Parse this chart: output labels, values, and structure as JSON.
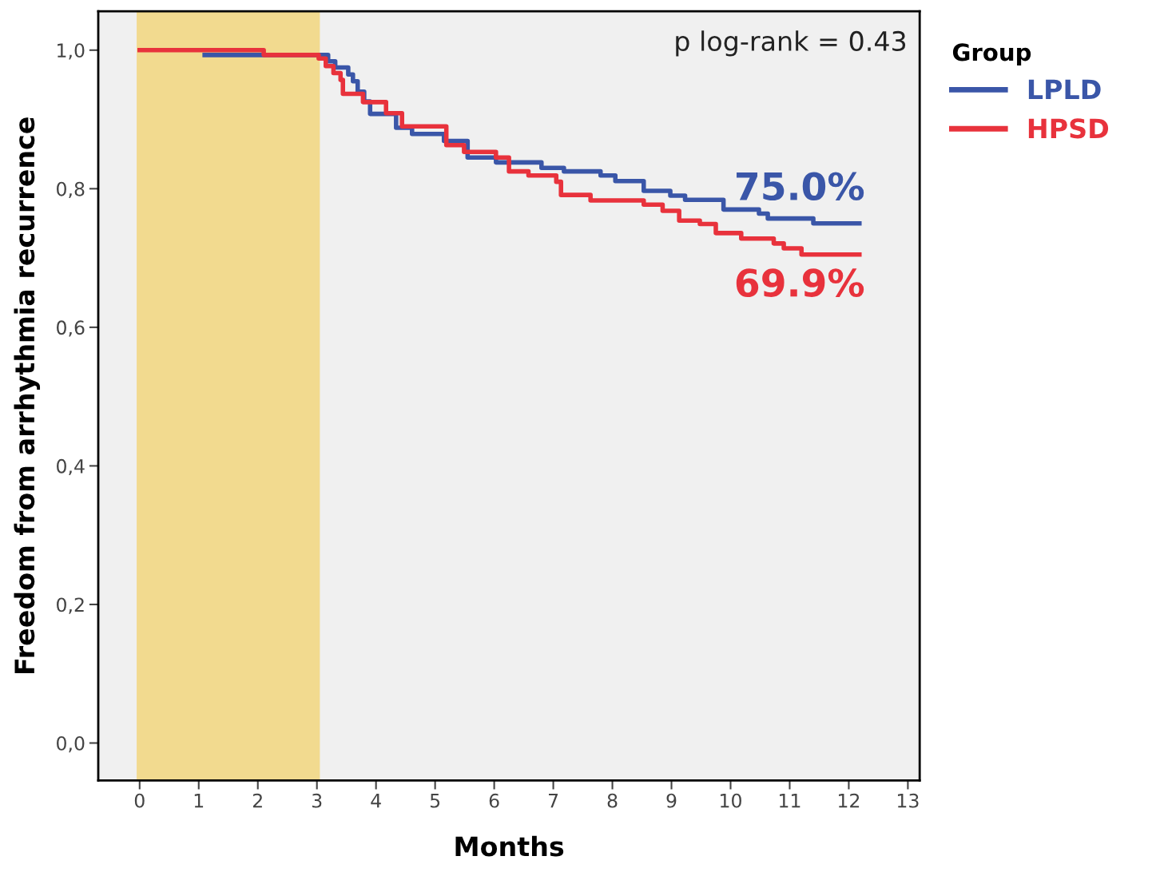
{
  "chart_data": {
    "type": "step",
    "xlabel": "Months",
    "ylabel": "Freedom from arrhythmia recurrence",
    "legend_title": "Group",
    "legend": "right",
    "grid": false,
    "xlim": [
      -0.7,
      13.2
    ],
    "ylim": [
      -0.054,
      1.056
    ],
    "xticks": [
      0,
      1,
      2,
      3,
      4,
      5,
      6,
      7,
      8,
      9,
      10,
      11,
      12,
      13
    ],
    "yticks": [
      {
        "value": 0,
        "label": "0,0"
      },
      {
        "value": 0.2,
        "label": "0,2"
      },
      {
        "value": 0.4,
        "label": "0,4"
      },
      {
        "value": 0.6,
        "label": "0,6"
      },
      {
        "value": 0.8,
        "label": "0,8"
      },
      {
        "value": 1.0,
        "label": "1,0"
      }
    ],
    "bands": [
      {
        "axis": "x",
        "from": -0.05,
        "to": 3.05,
        "color": "#f2da8f"
      }
    ],
    "series": [
      {
        "name": "LPLD",
        "color": "#3a56a8",
        "x": [
          1.1,
          3.19,
          3.31,
          3.53,
          3.61,
          3.69,
          3.8,
          3.9,
          4.34,
          4.61,
          5.15,
          5.55,
          6.03,
          6.8,
          7.18,
          7.8,
          8.05,
          8.53,
          8.98,
          9.23,
          9.88,
          10.48,
          10.63,
          11.4,
          12.18
        ],
        "values": [
          0.993,
          0.984,
          0.975,
          0.965,
          0.955,
          0.94,
          0.926,
          0.908,
          0.888,
          0.879,
          0.869,
          0.845,
          0.838,
          0.83,
          0.825,
          0.819,
          0.811,
          0.797,
          0.79,
          0.784,
          0.77,
          0.764,
          0.757,
          0.75,
          0.75
        ]
      },
      {
        "name": "HPSD",
        "color": "#e8323c",
        "x": [
          0,
          2.1,
          3.03,
          3.15,
          3.28,
          3.4,
          3.44,
          3.78,
          4.17,
          4.44,
          5.19,
          5.49,
          6.03,
          6.25,
          6.58,
          7.05,
          7.13,
          7.63,
          8.53,
          8.85,
          9.13,
          9.48,
          9.75,
          10.18,
          10.73,
          10.9,
          11.2,
          12.18
        ],
        "values": [
          1.0,
          0.993,
          0.988,
          0.977,
          0.967,
          0.957,
          0.937,
          0.925,
          0.909,
          0.89,
          0.863,
          0.853,
          0.845,
          0.825,
          0.819,
          0.81,
          0.791,
          0.783,
          0.777,
          0.768,
          0.754,
          0.749,
          0.736,
          0.728,
          0.721,
          0.714,
          0.705,
          0.705
        ]
      }
    ],
    "annotations": [
      {
        "text": "p log-rank = 0.43"
      },
      {
        "text": "75.0%",
        "x": 12.18,
        "y": 0.75
      },
      {
        "text": "69.9%",
        "x": 12.18,
        "y": 0.705
      }
    ]
  }
}
